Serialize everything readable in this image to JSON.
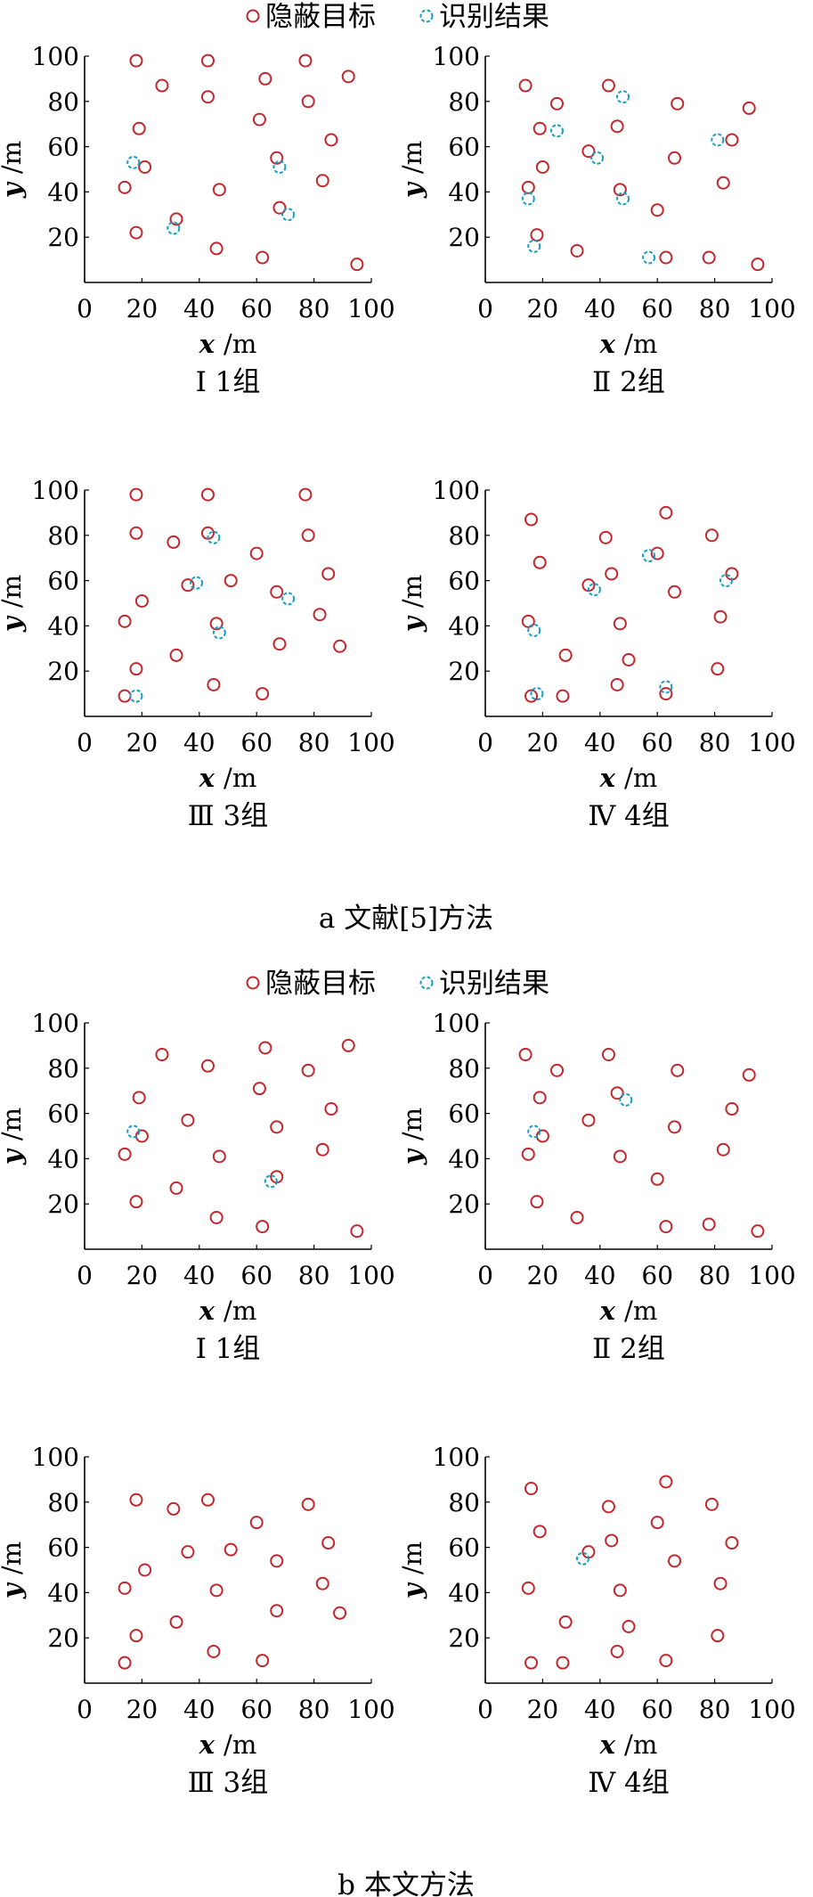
{
  "legend": {
    "target": "隐蔽目标",
    "result": "识别结果"
  },
  "colors": {
    "target": "#c0282d",
    "result": "#1a9cc4",
    "axis": "#000000"
  },
  "sections": [
    {
      "caption": "a 文献[5]方法",
      "groups": [
        {
          "label": "Ⅰ 1组",
          "targets": [
            [
              18,
              98
            ],
            [
              43,
              98
            ],
            [
              77,
              98
            ],
            [
              27,
              87
            ],
            [
              63,
              90
            ],
            [
              92,
              91
            ],
            [
              43,
              82
            ],
            [
              78,
              80
            ],
            [
              61,
              72
            ],
            [
              19,
              68
            ],
            [
              86,
              63
            ],
            [
              67,
              55
            ],
            [
              21,
              51
            ],
            [
              14,
              42
            ],
            [
              47,
              41
            ],
            [
              83,
              45
            ],
            [
              32,
              28
            ],
            [
              68,
              33
            ],
            [
              18,
              22
            ],
            [
              46,
              15
            ],
            [
              62,
              11
            ],
            [
              95,
              8
            ]
          ],
          "results": [
            [
              17,
              53
            ],
            [
              68,
              51
            ],
            [
              31,
              24
            ],
            [
              71,
              30
            ]
          ]
        },
        {
          "label": "Ⅱ 2组",
          "targets": [
            [
              14,
              87
            ],
            [
              43,
              87
            ],
            [
              25,
              79
            ],
            [
              67,
              79
            ],
            [
              92,
              77
            ],
            [
              46,
              69
            ],
            [
              19,
              68
            ],
            [
              36,
              58
            ],
            [
              86,
              63
            ],
            [
              66,
              55
            ],
            [
              20,
              51
            ],
            [
              15,
              42
            ],
            [
              47,
              41
            ],
            [
              83,
              44
            ],
            [
              60,
              32
            ],
            [
              18,
              21
            ],
            [
              32,
              14
            ],
            [
              63,
              11
            ],
            [
              78,
              11
            ],
            [
              95,
              8
            ]
          ],
          "results": [
            [
              48,
              82
            ],
            [
              25,
              67
            ],
            [
              81,
              63
            ],
            [
              39,
              55
            ],
            [
              15,
              37
            ],
            [
              48,
              37
            ],
            [
              17,
              16
            ],
            [
              57,
              11
            ]
          ]
        },
        {
          "label": "Ⅲ 3组",
          "targets": [
            [
              18,
              98
            ],
            [
              43,
              98
            ],
            [
              77,
              98
            ],
            [
              18,
              81
            ],
            [
              31,
              77
            ],
            [
              43,
              81
            ],
            [
              78,
              80
            ],
            [
              60,
              72
            ],
            [
              85,
              63
            ],
            [
              36,
              58
            ],
            [
              51,
              60
            ],
            [
              67,
              55
            ],
            [
              20,
              51
            ],
            [
              14,
              42
            ],
            [
              46,
              41
            ],
            [
              82,
              45
            ],
            [
              68,
              32
            ],
            [
              89,
              31
            ],
            [
              32,
              27
            ],
            [
              18,
              21
            ],
            [
              45,
              14
            ],
            [
              62,
              10
            ],
            [
              14,
              9
            ]
          ],
          "results": [
            [
              45,
              79
            ],
            [
              39,
              59
            ],
            [
              71,
              52
            ],
            [
              47,
              37
            ],
            [
              18,
              9
            ]
          ]
        },
        {
          "label": "Ⅳ 4组",
          "targets": [
            [
              16,
              87
            ],
            [
              63,
              90
            ],
            [
              42,
              79
            ],
            [
              79,
              80
            ],
            [
              60,
              72
            ],
            [
              19,
              68
            ],
            [
              44,
              63
            ],
            [
              36,
              58
            ],
            [
              86,
              63
            ],
            [
              66,
              55
            ],
            [
              15,
              42
            ],
            [
              47,
              41
            ],
            [
              82,
              44
            ],
            [
              28,
              27
            ],
            [
              50,
              25
            ],
            [
              81,
              21
            ],
            [
              46,
              14
            ],
            [
              16,
              9
            ],
            [
              27,
              9
            ],
            [
              63,
              10
            ]
          ],
          "results": [
            [
              57,
              71
            ],
            [
              38,
              56
            ],
            [
              84,
              60
            ],
            [
              17,
              38
            ],
            [
              18,
              10
            ],
            [
              63,
              13
            ]
          ]
        }
      ]
    },
    {
      "caption": "b 本文方法",
      "groups": [
        {
          "label": "Ⅰ 1组",
          "targets": [
            [
              27,
              86
            ],
            [
              63,
              89
            ],
            [
              92,
              90
            ],
            [
              43,
              81
            ],
            [
              78,
              79
            ],
            [
              61,
              71
            ],
            [
              19,
              67
            ],
            [
              86,
              62
            ],
            [
              36,
              57
            ],
            [
              67,
              54
            ],
            [
              20,
              50
            ],
            [
              14,
              42
            ],
            [
              47,
              41
            ],
            [
              83,
              44
            ],
            [
              32,
              27
            ],
            [
              67,
              32
            ],
            [
              18,
              21
            ],
            [
              46,
              14
            ],
            [
              62,
              10
            ],
            [
              95,
              8
            ]
          ],
          "results": [
            [
              17,
              52
            ],
            [
              65,
              30
            ]
          ]
        },
        {
          "label": "Ⅱ 2组",
          "targets": [
            [
              14,
              86
            ],
            [
              43,
              86
            ],
            [
              25,
              79
            ],
            [
              67,
              79
            ],
            [
              92,
              77
            ],
            [
              46,
              69
            ],
            [
              19,
              67
            ],
            [
              36,
              57
            ],
            [
              86,
              62
            ],
            [
              66,
              54
            ],
            [
              20,
              50
            ],
            [
              15,
              42
            ],
            [
              47,
              41
            ],
            [
              83,
              44
            ],
            [
              60,
              31
            ],
            [
              18,
              21
            ],
            [
              32,
              14
            ],
            [
              63,
              10
            ],
            [
              78,
              11
            ],
            [
              95,
              8
            ]
          ],
          "results": [
            [
              49,
              66
            ],
            [
              17,
              52
            ]
          ]
        },
        {
          "label": "Ⅲ 3组",
          "targets": [
            [
              18,
              81
            ],
            [
              31,
              77
            ],
            [
              43,
              81
            ],
            [
              78,
              79
            ],
            [
              60,
              71
            ],
            [
              85,
              62
            ],
            [
              36,
              58
            ],
            [
              51,
              59
            ],
            [
              67,
              54
            ],
            [
              21,
              50
            ],
            [
              14,
              42
            ],
            [
              46,
              41
            ],
            [
              83,
              44
            ],
            [
              67,
              32
            ],
            [
              89,
              31
            ],
            [
              32,
              27
            ],
            [
              18,
              21
            ],
            [
              45,
              14
            ],
            [
              62,
              10
            ],
            [
              14,
              9
            ]
          ],
          "results": []
        },
        {
          "label": "Ⅳ 4组",
          "targets": [
            [
              16,
              86
            ],
            [
              63,
              89
            ],
            [
              43,
              78
            ],
            [
              79,
              79
            ],
            [
              60,
              71
            ],
            [
              19,
              67
            ],
            [
              44,
              63
            ],
            [
              36,
              58
            ],
            [
              86,
              62
            ],
            [
              66,
              54
            ],
            [
              15,
              42
            ],
            [
              47,
              41
            ],
            [
              82,
              44
            ],
            [
              28,
              27
            ],
            [
              50,
              25
            ],
            [
              81,
              21
            ],
            [
              46,
              14
            ],
            [
              16,
              9
            ],
            [
              27,
              9
            ],
            [
              63,
              10
            ]
          ],
          "results": [
            [
              34,
              55
            ]
          ]
        }
      ]
    }
  ],
  "chart_data": {
    "type": "scatter",
    "xlabel": "x /m",
    "ylabel": "y /m",
    "xlim": [
      0,
      100
    ],
    "ylim": [
      0,
      100
    ],
    "xticks": [
      "0",
      "20",
      "40",
      "60",
      "80",
      "100"
    ],
    "yticks": [
      "20",
      "40",
      "60",
      "80",
      "100"
    ],
    "series_names": [
      "隐蔽目标",
      "识别结果"
    ]
  }
}
